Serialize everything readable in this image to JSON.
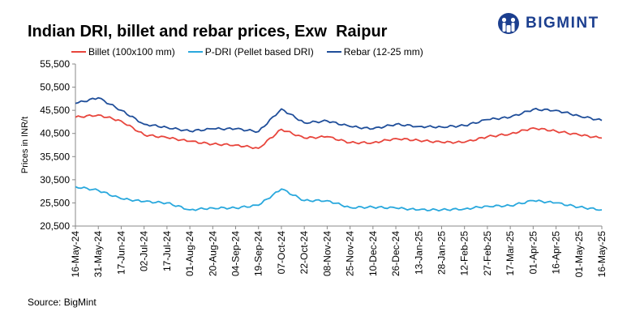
{
  "header": {
    "title": "Indian DRI, billet and rebar prices, Exw  Raipur",
    "brand": "BIGMINT"
  },
  "source": "Source: BigMint",
  "colors": {
    "billet": "#e8453c",
    "pdri": "#29a8dd",
    "rebar": "#1f4e9a",
    "brand": "#1c3f8f"
  },
  "chart_data": {
    "type": "line",
    "title": "Indian DRI, billet and rebar prices, Exw  Raipur",
    "xlabel": "",
    "ylabel": "Prices in INR/t",
    "ylim": [
      20500,
      55500
    ],
    "yticks": [
      "20,500",
      "25,500",
      "30,500",
      "35,500",
      "40,500",
      "45,500",
      "50,500",
      "55,500"
    ],
    "ytick_values": [
      20500,
      25500,
      30500,
      35500,
      40500,
      45500,
      50500,
      55500
    ],
    "grid": false,
    "legend_position": "top",
    "x_ticks": [
      "16-May-24",
      "31-May-24",
      "17-Jun-24",
      "02-Jul-24",
      "17-Jul-24",
      "01-Aug-24",
      "20-Aug-24",
      "04-Sep-24",
      "19-Sep-24",
      "07-Oct-24",
      "22-Oct-24",
      "08-Nov-24",
      "25-Nov-24",
      "10-Dec-24",
      "26-Dec-24",
      "13-Jan-25",
      "28-Jan-25",
      "12-Feb-25",
      "27-Feb-25",
      "17-Mar-25",
      "01-Apr-25",
      "16-Apr-25",
      "01-May-25",
      "16-May-25"
    ],
    "series": [
      {
        "name": "Billet (100x100 mm)",
        "color": "#e8453c",
        "values": [
          44000,
          44500,
          43200,
          40200,
          39600,
          38800,
          38200,
          38000,
          37300,
          41400,
          39500,
          39800,
          38500,
          38500,
          39400,
          39000,
          38600,
          38600,
          39800,
          40400,
          41700,
          41000,
          40200,
          39500
        ]
      },
      {
        "name": "P-DRI (Pellet based DRI)",
        "color": "#29a8dd",
        "values": [
          29000,
          28200,
          26400,
          25800,
          25500,
          24000,
          24400,
          24400,
          25000,
          28500,
          26000,
          26000,
          24500,
          24600,
          24400,
          24000,
          24000,
          24200,
          24800,
          24900,
          26000,
          25500,
          24600,
          24000
        ]
      },
      {
        "name": "Rebar (12-25 mm)",
        "color": "#1f4e9a",
        "values": [
          47000,
          48200,
          45500,
          42500,
          41800,
          41000,
          41500,
          41500,
          40900,
          45800,
          42800,
          43200,
          42000,
          41500,
          42500,
          42000,
          41900,
          42200,
          43500,
          44000,
          45700,
          45500,
          44300,
          43300
        ]
      }
    ]
  }
}
